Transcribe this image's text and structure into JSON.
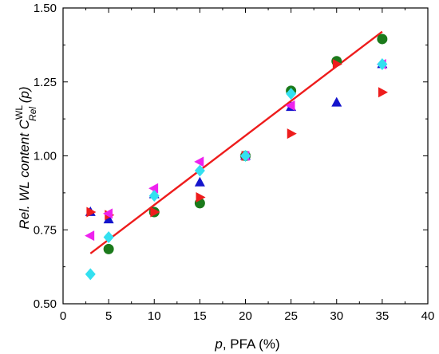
{
  "chart_data": {
    "type": "scatter",
    "xlim": [
      0,
      40
    ],
    "ylim": [
      0.5,
      1.5
    ],
    "x_ticks": [
      0,
      5,
      10,
      15,
      20,
      25,
      30,
      35,
      40
    ],
    "y_ticks": [
      0.5,
      0.75,
      1.0,
      1.25,
      1.5
    ],
    "x_tick_labels": [
      "0",
      "5",
      "10",
      "15",
      "20",
      "25",
      "30",
      "35",
      "40"
    ],
    "y_tick_labels": [
      "0.50",
      "0.75",
      "1.00",
      "1.25",
      "1.50"
    ],
    "xlabel": {
      "italic": "p",
      "rest": ", PFA (%)"
    },
    "ylabel": {
      "main": "Rel. WL content  C",
      "sup": "WL",
      "sub": "Rel",
      "tail": " (p)"
    },
    "grid": false,
    "legend": "none",
    "series": [
      {
        "marker": "circle",
        "color": "#1b7a1b",
        "x": [
          5,
          10,
          15,
          20,
          25,
          30,
          35
        ],
        "y": [
          0.685,
          0.81,
          0.84,
          1.0,
          1.22,
          1.32,
          1.395
        ]
      },
      {
        "marker": "triangle-up",
        "color": "#1414cc",
        "x": [
          3,
          5,
          10,
          15,
          20,
          25,
          30,
          35
        ],
        "y": [
          0.81,
          0.785,
          0.87,
          0.91,
          1.0,
          1.165,
          1.18,
          1.31
        ]
      },
      {
        "marker": "triangle-right",
        "color": "#ee1c1c",
        "x": [
          3,
          5,
          10,
          15,
          20,
          25,
          30,
          35
        ],
        "y": [
          0.81,
          0.8,
          0.81,
          0.86,
          1.0,
          1.075,
          1.31,
          1.215
        ]
      },
      {
        "marker": "triangle-left",
        "color": "#ee22ee",
        "x": [
          3,
          5,
          10,
          15,
          20,
          25,
          35
        ],
        "y": [
          0.73,
          0.805,
          0.89,
          0.98,
          1.0,
          1.17,
          1.31
        ]
      },
      {
        "marker": "diamond",
        "color": "#33e0f0",
        "x": [
          3,
          5,
          10,
          15,
          20,
          25,
          35
        ],
        "y": [
          0.6,
          0.725,
          0.865,
          0.95,
          1.0,
          1.21,
          1.31
        ]
      }
    ],
    "fit_line": {
      "color": "#ee1c1c",
      "x": [
        3,
        35
      ],
      "y": [
        0.67,
        1.42
      ]
    }
  }
}
